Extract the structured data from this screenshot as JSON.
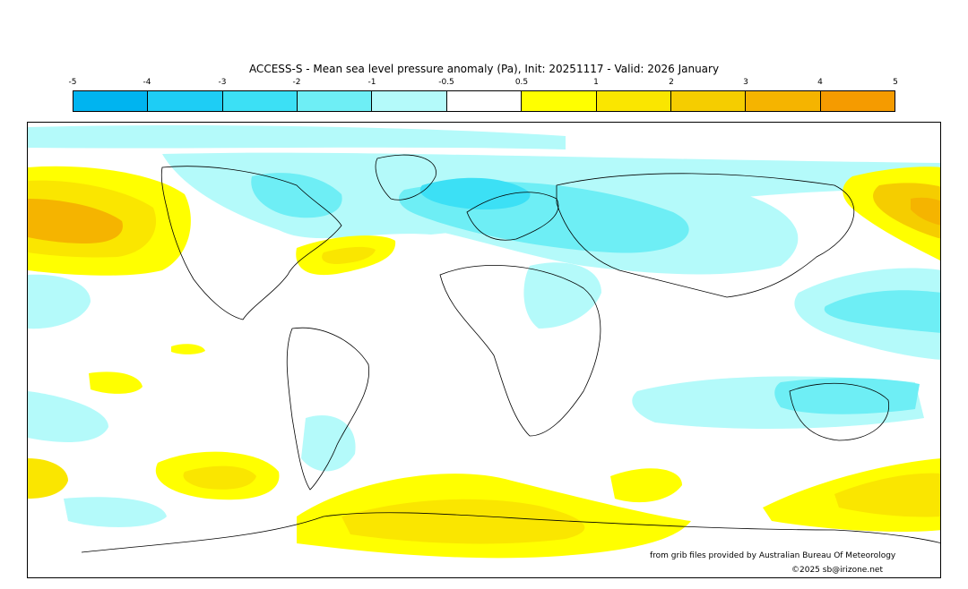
{
  "title": "ACCESS-S - Mean sea level pressure anomaly (Pa), Init: 20251117 - Valid: 2026 January",
  "colorbar": {
    "ticks": [
      "-5",
      "-4",
      "-3",
      "-2",
      "-1",
      "-0.5",
      "0.5",
      "1",
      "2",
      "3",
      "4",
      "5"
    ],
    "colors": [
      "#00b4f0",
      "#1ecdf5",
      "#3ce0f5",
      "#6eeef5",
      "#b4fafa",
      "#ffffff",
      "#ffff00",
      "#fae600",
      "#f5cd00",
      "#f5b400",
      "#f59b00"
    ]
  },
  "credits": {
    "source": "from grib files provided by Australian Bureau Of Meteorology",
    "copyright": "©2025 sb@irizone.net"
  }
}
